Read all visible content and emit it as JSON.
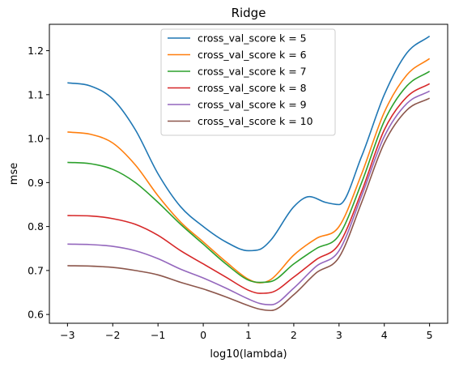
{
  "chart_data": {
    "type": "line",
    "title": "Ridge",
    "xlabel": "log10(lambda)",
    "ylabel": "mse",
    "xlim": [
      -3.4,
      5.4
    ],
    "ylim": [
      0.58,
      1.26
    ],
    "xticks": [
      -3,
      -2,
      -1,
      0,
      1,
      2,
      3,
      4,
      5
    ],
    "xtick_labels": [
      "−3",
      "−2",
      "−1",
      "0",
      "1",
      "2",
      "3",
      "4",
      "5"
    ],
    "yticks": [
      0.6,
      0.7,
      0.8,
      0.9,
      1.0,
      1.1,
      1.2
    ],
    "ytick_labels": [
      "0.6",
      "0.7",
      "0.8",
      "0.9",
      "1.0",
      "1.1",
      "1.2"
    ],
    "grid": false,
    "legend_position": "upper center",
    "series": [
      {
        "name": "cross_val_score k = 5",
        "color": "#1f77b4",
        "x": [
          -3,
          -2.5,
          -2,
          -1.5,
          -1,
          -0.5,
          0,
          0.5,
          1,
          1.25,
          1.5,
          2,
          2.35,
          2.7,
          3,
          3.5,
          4,
          4.5,
          5
        ],
        "y": [
          1.127,
          1.12,
          1.09,
          1.02,
          0.92,
          0.845,
          0.8,
          0.765,
          0.745,
          0.748,
          0.77,
          0.845,
          0.868,
          0.855,
          0.85,
          0.96,
          1.1,
          1.195,
          1.233
        ]
      },
      {
        "name": "cross_val_score k = 6",
        "color": "#ff7f0e",
        "x": [
          -3,
          -2.5,
          -2,
          -1.5,
          -1,
          -0.5,
          0,
          0.5,
          1,
          1.25,
          1.5,
          2,
          2.5,
          3,
          3.5,
          4,
          4.5,
          5
        ],
        "y": [
          1.015,
          1.01,
          0.99,
          0.94,
          0.87,
          0.81,
          0.765,
          0.72,
          0.68,
          0.672,
          0.68,
          0.735,
          0.773,
          0.8,
          0.92,
          1.06,
          1.145,
          1.182
        ]
      },
      {
        "name": "cross_val_score k = 7",
        "color": "#2ca02c",
        "x": [
          -3,
          -2.5,
          -2,
          -1.5,
          -1,
          -0.5,
          0,
          0.5,
          1,
          1.25,
          1.5,
          2,
          2.5,
          3,
          3.5,
          4,
          4.5,
          5
        ],
        "y": [
          0.946,
          0.943,
          0.93,
          0.9,
          0.855,
          0.805,
          0.76,
          0.715,
          0.678,
          0.673,
          0.675,
          0.715,
          0.75,
          0.78,
          0.9,
          1.04,
          1.12,
          1.153
        ]
      },
      {
        "name": "cross_val_score k = 8",
        "color": "#d62728",
        "x": [
          -3,
          -2.5,
          -2,
          -1.5,
          -1,
          -0.5,
          0,
          0.5,
          1,
          1.25,
          1.5,
          2,
          2.5,
          3,
          3.5,
          4,
          4.5,
          5
        ],
        "y": [
          0.825,
          0.824,
          0.818,
          0.805,
          0.78,
          0.745,
          0.715,
          0.685,
          0.655,
          0.648,
          0.65,
          0.685,
          0.725,
          0.76,
          0.88,
          1.02,
          1.095,
          1.125
        ]
      },
      {
        "name": "cross_val_score k = 9",
        "color": "#9467bd",
        "x": [
          -3,
          -2.5,
          -2,
          -1.5,
          -1,
          -0.5,
          0,
          0.5,
          1,
          1.25,
          1.5,
          2,
          2.5,
          3,
          3.5,
          4,
          4.5,
          5
        ],
        "y": [
          0.76,
          0.759,
          0.755,
          0.745,
          0.727,
          0.703,
          0.683,
          0.66,
          0.635,
          0.625,
          0.622,
          0.66,
          0.71,
          0.745,
          0.87,
          1.005,
          1.08,
          1.108
        ]
      },
      {
        "name": "cross_val_score k = 10",
        "color": "#8c564b",
        "x": [
          -3,
          -2.5,
          -2,
          -1.5,
          -1,
          -0.5,
          0,
          0.5,
          1,
          1.25,
          1.5,
          2,
          2.5,
          3,
          3.5,
          4,
          4.5,
          5
        ],
        "y": [
          0.711,
          0.71,
          0.707,
          0.7,
          0.69,
          0.673,
          0.658,
          0.64,
          0.62,
          0.612,
          0.609,
          0.645,
          0.695,
          0.73,
          0.855,
          0.99,
          1.065,
          1.092
        ]
      }
    ]
  }
}
